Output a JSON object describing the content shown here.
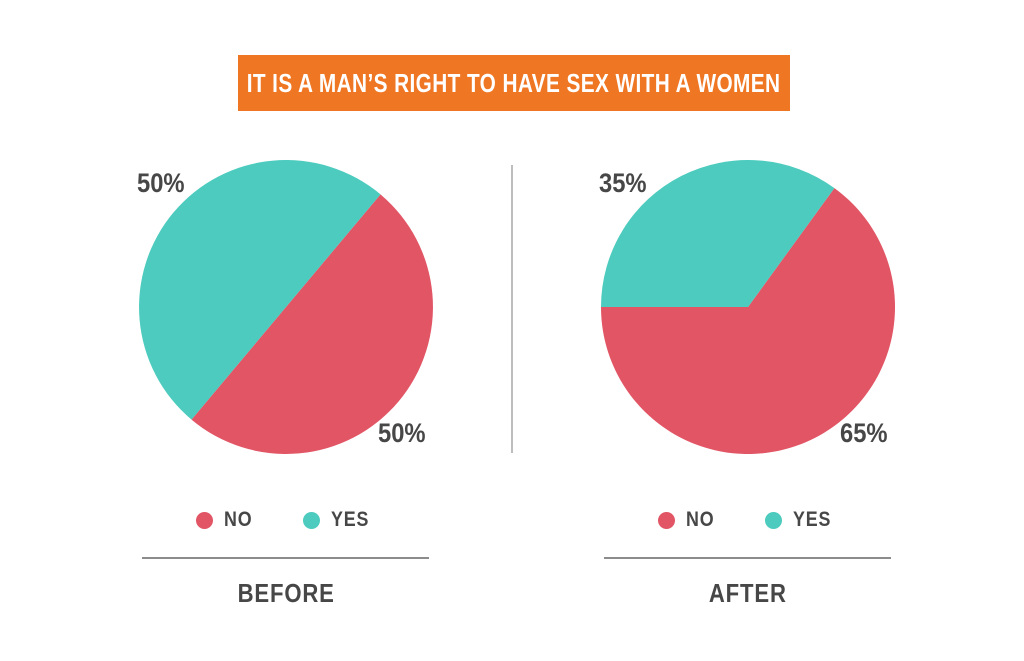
{
  "title": "IT IS A MAN’S RIGHT TO HAVE SEX WITH A WOMEN",
  "colors": {
    "accent_orange": "#EF7623",
    "no_red": "#E25565",
    "yes_teal": "#4CCBBE",
    "text_dark": "#474747",
    "underline_gray": "#8C8C8C",
    "divider_gray": "#BDBDBD",
    "background": "#FFFFFF"
  },
  "chart_data": {
    "type": "pie",
    "title": "IT IS A MAN’S RIGHT TO HAVE SEX WITH A WOMEN",
    "legend_position": "bottom",
    "pies": [
      {
        "title": "BEFORE",
        "rotation_deg": 40,
        "slices": [
          {
            "label": "NO",
            "value": 50,
            "display": "50%",
            "color": "#E25565"
          },
          {
            "label": "YES",
            "value": 50,
            "display": "50%",
            "color": "#4CCBBE"
          }
        ]
      },
      {
        "title": "AFTER",
        "rotation_deg": 36,
        "slices": [
          {
            "label": "NO",
            "value": 65,
            "display": "65%",
            "color": "#E25565"
          },
          {
            "label": "YES",
            "value": 35,
            "display": "35%",
            "color": "#4CCBBE"
          }
        ]
      }
    ]
  }
}
